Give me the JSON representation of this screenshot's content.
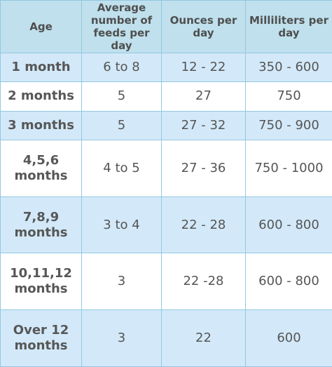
{
  "table": {
    "header": [
      "Age",
      "Average number of feeds per day",
      "Ounces per day",
      "Milliliters per day"
    ],
    "rows": [
      [
        "1 month",
        "6 to 8",
        "12 - 22",
        "350 - 600"
      ],
      [
        "2 months",
        "5",
        "27",
        "750"
      ],
      [
        "3 months",
        "5",
        "27 - 32",
        "750 - 900"
      ],
      [
        "4,5,6 months",
        "4 to 5",
        "27 - 36",
        "750 - 1000"
      ],
      [
        "7,8,9 months",
        "3 to 4",
        "22 - 28",
        "600 - 800"
      ],
      [
        "10,11,12 months",
        "3",
        "22 -28",
        "600 - 800"
      ],
      [
        "Over 12 months",
        "3",
        "22",
        "600"
      ]
    ]
  }
}
